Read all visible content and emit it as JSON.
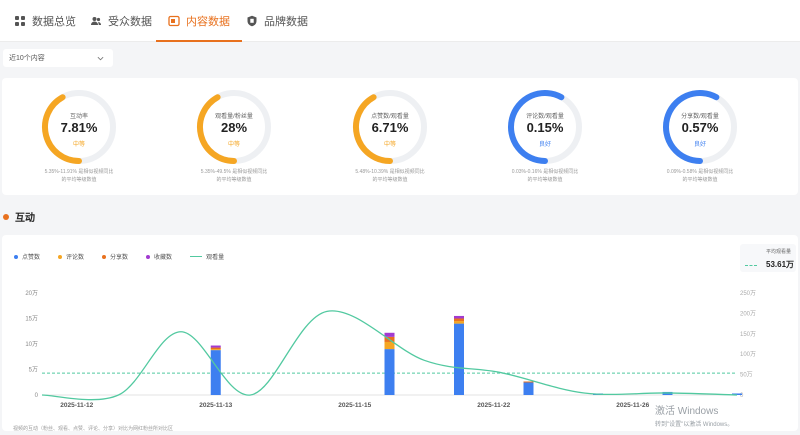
{
  "tabs": [
    {
      "label": "数据总览",
      "icon": "grid-icon",
      "active": false
    },
    {
      "label": "受众数据",
      "icon": "users-icon",
      "active": false
    },
    {
      "label": "内容数据",
      "icon": "content-icon",
      "active": true
    },
    {
      "label": "品牌数据",
      "icon": "brand-icon",
      "active": false
    }
  ],
  "filter": {
    "value": "近10个内容"
  },
  "metrics": [
    {
      "label": "互动率",
      "value": "7.81%",
      "status": "中等",
      "desc1": "5.35%-11.91% 是相似视频同比",
      "desc2": "的平均等级数值",
      "level": 0.42,
      "color": "#f5a623",
      "status_color": "#f5a623"
    },
    {
      "label": "观看量/粉丝量",
      "value": "28%",
      "status": "中等",
      "desc1": "5.35%-49.5% 是相似视频同比",
      "desc2": "的平均等级数值",
      "level": 0.42,
      "color": "#f5a623",
      "status_color": "#f5a623"
    },
    {
      "label": "点赞数/观看量",
      "value": "6.71%",
      "status": "中等",
      "desc1": "5.48%-10.39% 是相似视频同比",
      "desc2": "的平均等级数值",
      "level": 0.42,
      "color": "#f5a623",
      "status_color": "#f5a623"
    },
    {
      "label": "评论数/观看量",
      "value": "0.15%",
      "status": "良好",
      "desc1": "0.03%-0.16% 是相似视频同比",
      "desc2": "的平均等级数值",
      "level": 0.58,
      "color": "#3d7ff0",
      "status_color": "#3d7ff0"
    },
    {
      "label": "分享数/观看量",
      "value": "0.57%",
      "status": "良好",
      "desc1": "0.09%-0.58% 是相似视频同比",
      "desc2": "的平均等级数值",
      "level": 0.58,
      "color": "#3d7ff0",
      "status_color": "#3d7ff0"
    }
  ],
  "section": {
    "title": "互动"
  },
  "legend": [
    {
      "label": "点赞数",
      "color": "#3d7ff0",
      "kind": "dot"
    },
    {
      "label": "评论数",
      "color": "#f5a623",
      "kind": "dot"
    },
    {
      "label": "分享数",
      "color": "#e8711e",
      "kind": "dot"
    },
    {
      "label": "收藏数",
      "color": "#a23bd0",
      "kind": "dot"
    },
    {
      "label": "观看量",
      "color": "#52c9a0",
      "kind": "line"
    }
  ],
  "average": {
    "label": "平均观看量",
    "value": "53.61万"
  },
  "footnote": "视频的互动（粉丝、观看、点赞、评论、分享）对比为网红粉丝所对比区",
  "watermark": {
    "line1": "激活 Windows",
    "line2": "转到\"设置\"以激活 Windows。"
  },
  "chart_data": {
    "type": "bar",
    "x_ticks": [
      "2025-11-12",
      "2025-11-13",
      "2025-11-15",
      "2025-11-22",
      "2025-11-26"
    ],
    "y_left_ticks": [
      "0",
      "5万",
      "10万",
      "15万",
      "20万"
    ],
    "y_right_ticks": [
      "0",
      "50万",
      "100万",
      "150万",
      "200万",
      "250万"
    ],
    "y_left_range": [
      0,
      200000
    ],
    "y_right_range": [
      0,
      2500000
    ],
    "bars": [
      {
        "pos": 11,
        "likes": 0,
        "comments": 0,
        "shares": 0,
        "collects": 0
      },
      {
        "pos": 25,
        "likes": 88000,
        "comments": 2000,
        "shares": 3000,
        "collects": 4000
      },
      {
        "pos": 36,
        "likes": 0,
        "comments": 0,
        "shares": 0,
        "collects": 0
      },
      {
        "pos": 50,
        "likes": 90000,
        "comments": 14000,
        "shares": 10000,
        "collects": 8000
      },
      {
        "pos": 60,
        "likes": 140000,
        "comments": 5000,
        "shares": 5000,
        "collects": 5000
      },
      {
        "pos": 70,
        "likes": 25000,
        "comments": 0,
        "shares": 1500,
        "collects": 0
      },
      {
        "pos": 80,
        "likes": 3000,
        "comments": 0,
        "shares": 0,
        "collects": 0
      },
      {
        "pos": 90,
        "likes": 6000,
        "comments": 0,
        "shares": 0,
        "collects": 0
      },
      {
        "pos": 100,
        "likes": 3000,
        "comments": 0,
        "shares": 0,
        "collects": 0
      }
    ],
    "views_line": [
      {
        "pos": 0,
        "views": 0
      },
      {
        "pos": 11,
        "views": 0
      },
      {
        "pos": 20,
        "views": 1550000
      },
      {
        "pos": 30,
        "views": 0
      },
      {
        "pos": 41,
        "views": 2050000
      },
      {
        "pos": 55,
        "views": 850000
      },
      {
        "pos": 66,
        "views": 550000
      },
      {
        "pos": 78,
        "views": 50000
      },
      {
        "pos": 90,
        "views": 50000
      },
      {
        "pos": 100,
        "views": 0
      }
    ],
    "average_views": 536100
  }
}
